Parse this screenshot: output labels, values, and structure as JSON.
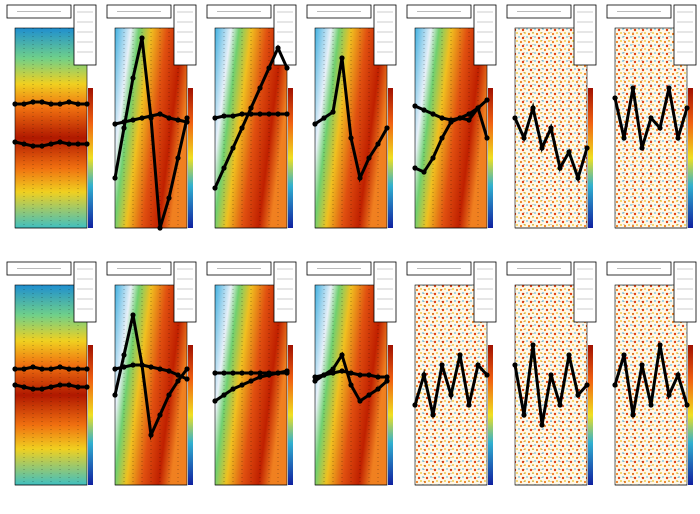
{
  "panels": [
    {
      "style": "band",
      "profiles": [
        [
          0.38,
          0.38,
          0.37,
          0.37,
          0.38,
          0.38,
          0.37,
          0.38,
          0.38
        ],
        [
          0.57,
          0.58,
          0.59,
          0.59,
          0.58,
          0.57,
          0.58,
          0.58,
          0.58
        ]
      ]
    },
    {
      "style": "diagonal",
      "profiles": [
        [
          0.75,
          0.5,
          0.25,
          0.05,
          0.45,
          1.0,
          0.85,
          0.65,
          0.45
        ],
        [
          0.48,
          0.47,
          0.46,
          0.45,
          0.44,
          0.43,
          0.45,
          0.46,
          0.47
        ]
      ]
    },
    {
      "style": "diagonal",
      "profiles": [
        [
          0.8,
          0.7,
          0.6,
          0.5,
          0.4,
          0.3,
          0.2,
          0.1,
          0.2
        ],
        [
          0.45,
          0.44,
          0.44,
          0.43,
          0.43,
          0.43,
          0.43,
          0.43,
          0.43
        ]
      ]
    },
    {
      "style": "diagonal",
      "profiles": [
        [
          0.48,
          0.45,
          0.42,
          0.15,
          0.55,
          0.75,
          0.65,
          0.58,
          0.5
        ]
      ]
    },
    {
      "style": "diagonal",
      "profiles": [
        [
          0.7,
          0.72,
          0.65,
          0.55,
          0.47,
          0.45,
          0.46,
          0.4,
          0.55
        ],
        [
          0.39,
          0.41,
          0.43,
          0.45,
          0.46,
          0.45,
          0.43,
          0.4,
          0.36
        ]
      ]
    },
    {
      "style": "noisy",
      "profiles": [
        [
          0.45,
          0.55,
          0.4,
          0.6,
          0.5,
          0.7,
          0.62,
          0.75,
          0.6
        ]
      ]
    },
    {
      "style": "noisy",
      "profiles": [
        [
          0.35,
          0.55,
          0.3,
          0.6,
          0.45,
          0.5,
          0.3,
          0.55,
          0.4
        ]
      ]
    },
    {
      "style": "band",
      "profiles": [
        [
          0.42,
          0.42,
          0.41,
          0.42,
          0.42,
          0.41,
          0.42,
          0.42,
          0.42
        ],
        [
          0.5,
          0.51,
          0.52,
          0.52,
          0.51,
          0.5,
          0.5,
          0.51,
          0.51
        ]
      ]
    },
    {
      "style": "diagonal",
      "profiles": [
        [
          0.55,
          0.35,
          0.15,
          0.4,
          0.75,
          0.65,
          0.55,
          0.48,
          0.42
        ],
        [
          0.42,
          0.41,
          0.4,
          0.4,
          0.41,
          0.42,
          0.43,
          0.45,
          0.47
        ]
      ]
    },
    {
      "style": "diagonal",
      "profiles": [
        [
          0.58,
          0.55,
          0.52,
          0.5,
          0.48,
          0.46,
          0.45,
          0.44,
          0.43
        ],
        [
          0.44,
          0.44,
          0.44,
          0.44,
          0.44,
          0.44,
          0.44,
          0.44,
          0.44
        ]
      ]
    },
    {
      "style": "diagonal",
      "profiles": [
        [
          0.48,
          0.45,
          0.42,
          0.35,
          0.5,
          0.58,
          0.55,
          0.52,
          0.48
        ],
        [
          0.46,
          0.45,
          0.44,
          0.43,
          0.44,
          0.45,
          0.45,
          0.46,
          0.46
        ]
      ]
    },
    {
      "style": "noisy",
      "profiles": [
        [
          0.6,
          0.45,
          0.65,
          0.4,
          0.55,
          0.35,
          0.6,
          0.4,
          0.45
        ]
      ]
    },
    {
      "style": "noisy",
      "profiles": [
        [
          0.4,
          0.65,
          0.3,
          0.7,
          0.45,
          0.6,
          0.35,
          0.55,
          0.5
        ]
      ]
    },
    {
      "style": "noisy",
      "profiles": [
        [
          0.5,
          0.35,
          0.65,
          0.4,
          0.6,
          0.3,
          0.55,
          0.45,
          0.6
        ]
      ]
    }
  ]
}
